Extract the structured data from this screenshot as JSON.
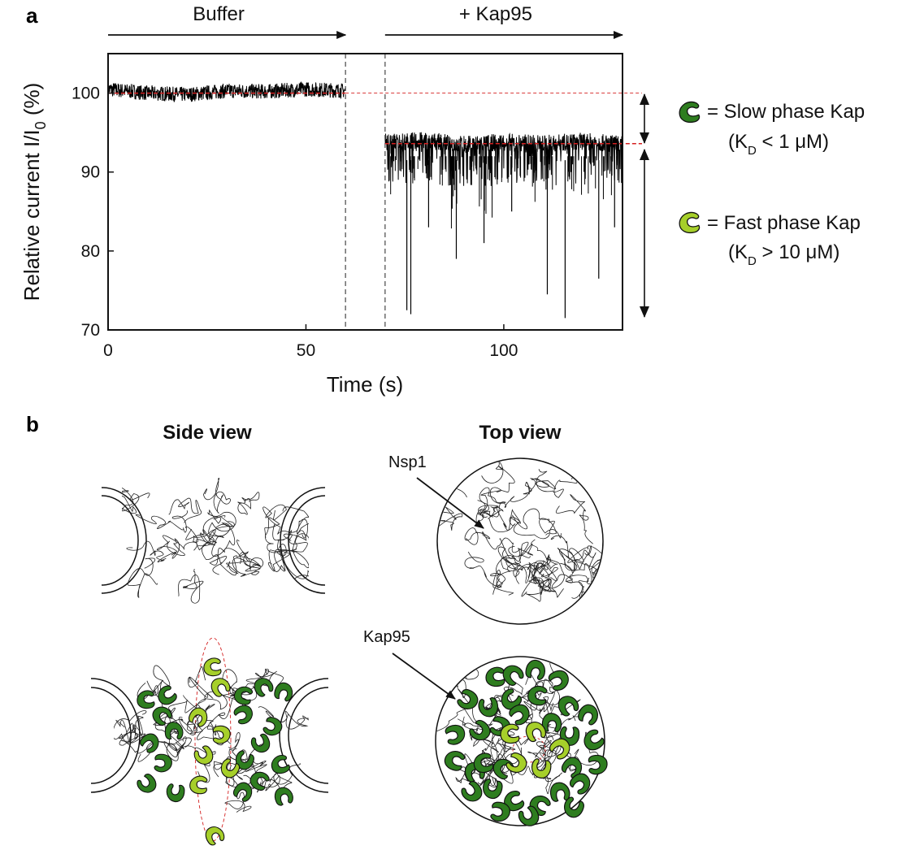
{
  "panel_a_label": "a",
  "panel_b_label": "b",
  "chart_data": {
    "type": "line",
    "title": "",
    "xlabel": "Time (s)",
    "ylabel_main": "Relative current I/I",
    "ylabel_sub": "0",
    "ylabel_unit": " (%)",
    "xlim": [
      0,
      130
    ],
    "ylim": [
      70,
      105
    ],
    "xticks": [
      0,
      50,
      100
    ],
    "yticks": [
      70,
      80,
      90,
      100
    ],
    "grid": false,
    "series": [
      {
        "segment": "buffer",
        "x_range": [
          0,
          60
        ],
        "mean": 100,
        "noise_band": [
          99,
          101.5
        ],
        "x": [
          0,
          10,
          20,
          30,
          40,
          50,
          60
        ],
        "y": [
          100.5,
          100.0,
          99.8,
          100.3,
          100.2,
          100.5,
          100.3
        ]
      },
      {
        "segment": "kap95",
        "x_range": [
          70,
          130
        ],
        "mean": 93.5,
        "noise_band": [
          88,
          95
        ],
        "x": [
          70,
          80,
          90,
          100,
          110,
          120,
          130
        ],
        "y": [
          93.8,
          94.0,
          93.5,
          93.8,
          93.6,
          93.9,
          93.5
        ],
        "spikes": [
          {
            "x": 75.5,
            "y": 72.5
          },
          {
            "x": 76.5,
            "y": 72.0
          },
          {
            "x": 81,
            "y": 83
          },
          {
            "x": 88,
            "y": 79
          },
          {
            "x": 95,
            "y": 81
          },
          {
            "x": 102,
            "y": 85
          },
          {
            "x": 111,
            "y": 74.5
          },
          {
            "x": 115.5,
            "y": 71.5
          },
          {
            "x": 124,
            "y": 76.5
          },
          {
            "x": 128,
            "y": 83
          }
        ]
      }
    ],
    "vlines_x": [
      60,
      70
    ],
    "hlines_y": [
      100,
      93.6
    ],
    "annotations": [
      {
        "text": "Buffer",
        "arrow_from_x": 0,
        "arrow_to_x": 60
      },
      {
        "text": "+ Kap95",
        "arrow_from_x": 70,
        "arrow_to_x": 130
      }
    ]
  },
  "legend": {
    "slow": {
      "label": "= Slow phase Kap",
      "kd_prefix": "(K",
      "kd_sub": "D",
      "kd_suffix": " < 1 μM)",
      "color": "#2e7d1f"
    },
    "fast": {
      "label": "= Fast phase Kap",
      "kd_prefix": "(K",
      "kd_sub": "D",
      "kd_suffix": "  > 10 μM)",
      "color": "#a6cf2a"
    }
  },
  "panel_b": {
    "side_view": "Side view",
    "top_view": "Top view",
    "nsp1": "Nsp1",
    "kap95": "Kap95"
  },
  "colors": {
    "slow_kap": "#2e7d1f",
    "fast_kap": "#a6cf2a",
    "trace": "#000000",
    "red_dash": "#d42020"
  }
}
